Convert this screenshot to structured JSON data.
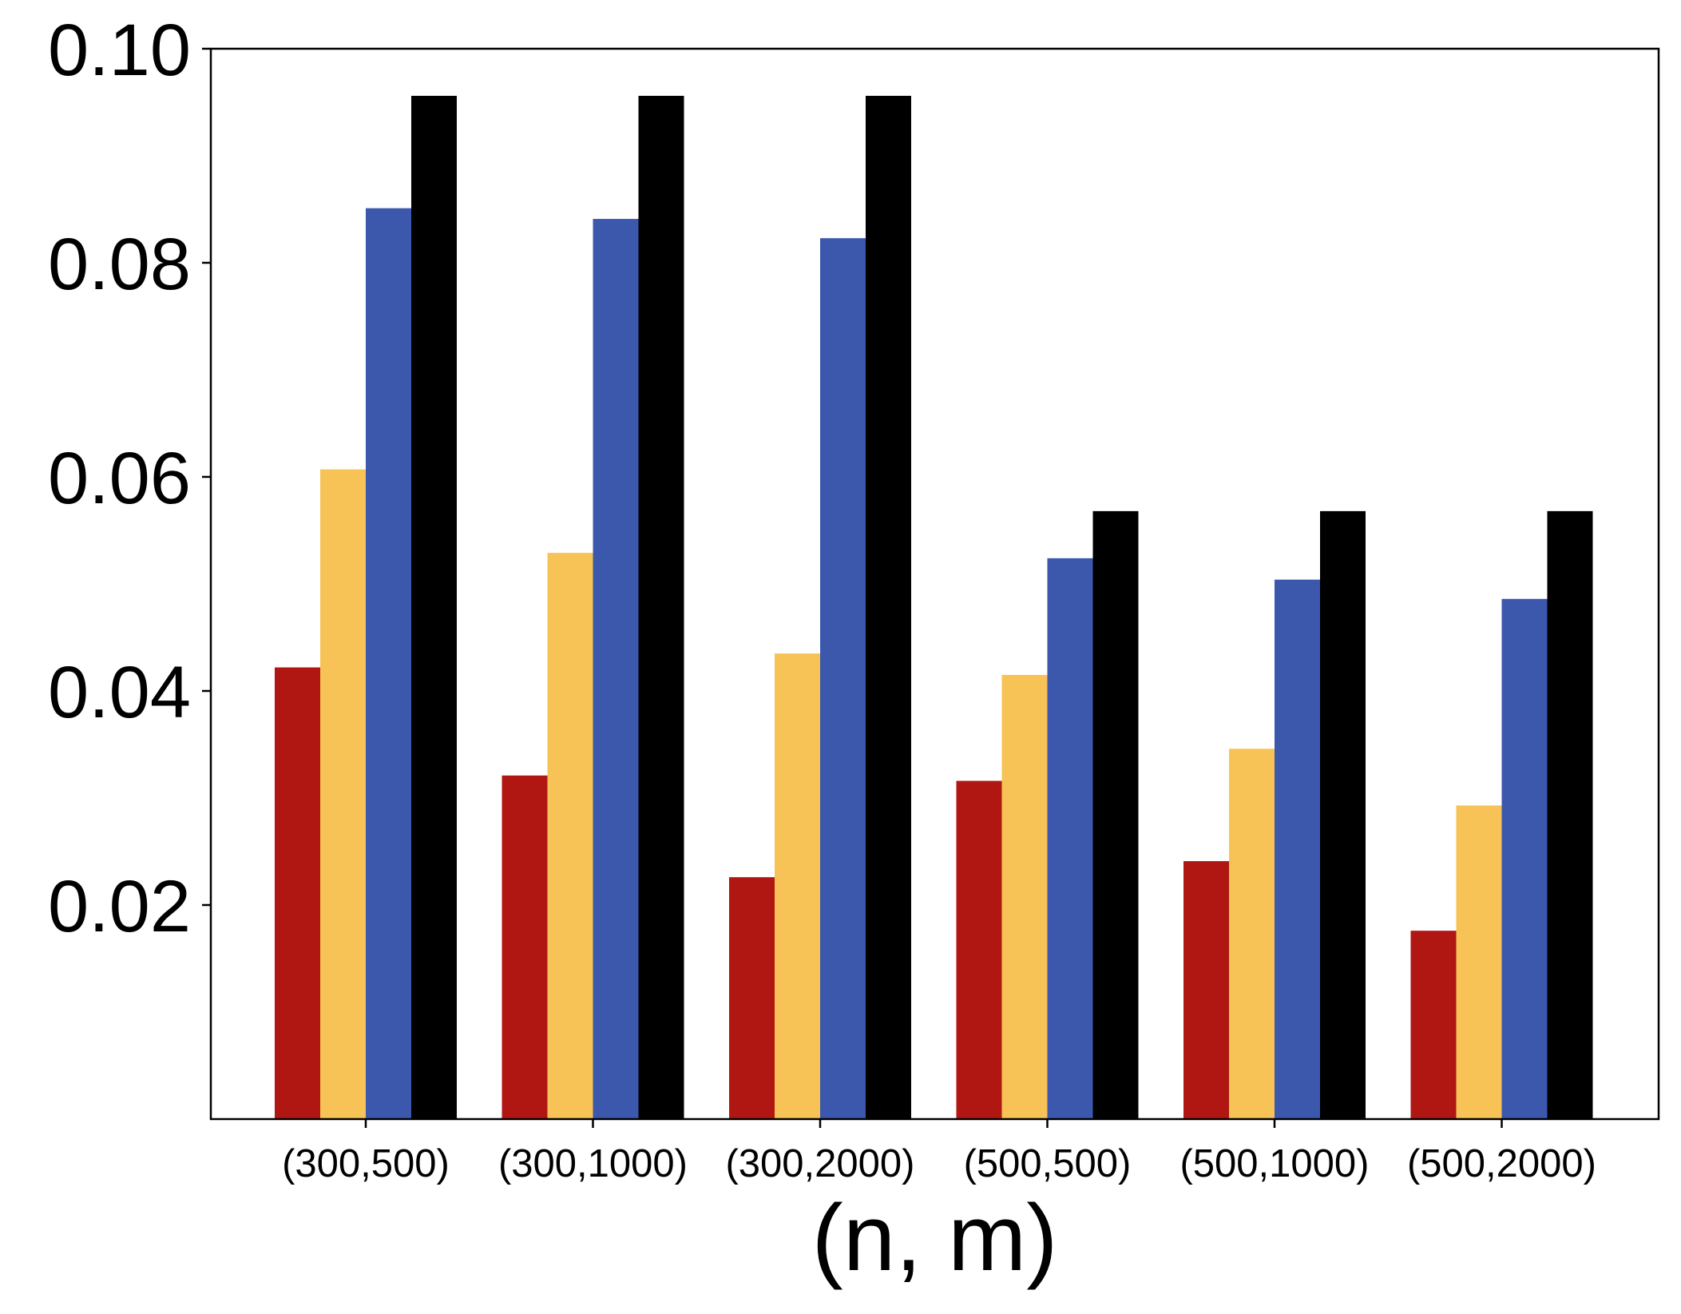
{
  "chart_data": {
    "type": "bar",
    "xlabel": "(n, m)",
    "ylabel": "",
    "categories": [
      "(300,500)",
      "(300,1000)",
      "(300,2000)",
      "(500,500)",
      "(500,1000)",
      "(500,2000)"
    ],
    "series": [
      {
        "color": "#b01712",
        "values": [
          0.0422,
          0.0321,
          0.0226,
          0.0316,
          0.0241,
          0.0176
        ]
      },
      {
        "color": "#f7c356",
        "values": [
          0.0607,
          0.0529,
          0.0435,
          0.0415,
          0.0346,
          0.0293
        ]
      },
      {
        "color": "#3b58ad",
        "values": [
          0.0851,
          0.0841,
          0.0823,
          0.0524,
          0.0504,
          0.0486
        ]
      },
      {
        "color": "#000000",
        "values": [
          0.0956,
          0.0956,
          0.0956,
          0.0568,
          0.0568,
          0.0568
        ]
      }
    ],
    "ylim": [
      0.0,
      0.1
    ],
    "yticks": [
      "0.02",
      "0.04",
      "0.06",
      "0.08",
      "0.10"
    ],
    "ytick_values": [
      0.02,
      0.04,
      0.06,
      0.08,
      0.1
    ],
    "grid": false,
    "legend": "none"
  }
}
